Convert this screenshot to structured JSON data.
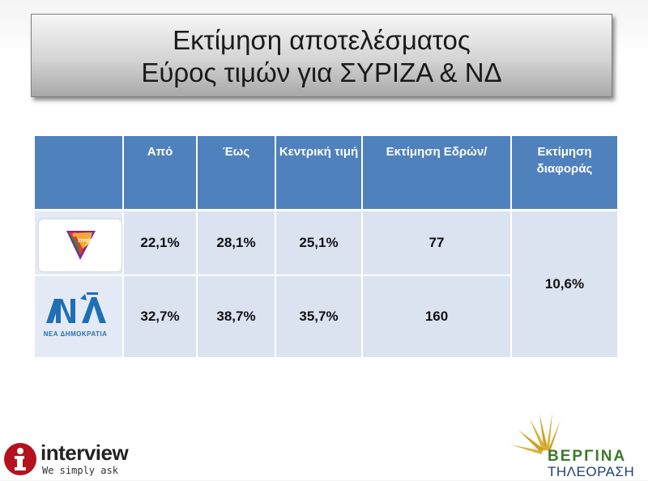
{
  "title": {
    "line1": "Εκτίμηση αποτελέσματος",
    "line2": "Εύρος τιμών για ΣΥΡΙΖΑ & ΝΔ"
  },
  "table": {
    "headers": [
      "",
      "Από",
      "Έως",
      "Κεντρική τιμή",
      "Εκτίμηση Εδρών/",
      "Εκτίμηση διαφοράς"
    ],
    "rows": [
      {
        "party": "ΣΥΡΙΖΑ",
        "logo_label": "ΣΥΡΙΖΑ",
        "from": "22,1%",
        "to": "28,1%",
        "central": "25,1%",
        "seats": "77"
      },
      {
        "party": "ΝΔ",
        "logo_label": "ΝΕΑ ΔΗΜΟΚΡΑΤΙΑ",
        "from": "32,7%",
        "to": "38,7%",
        "central": "35,7%",
        "seats": "160"
      }
    ],
    "difference": "10,6%"
  },
  "branding": {
    "interview_name": "interview",
    "interview_tagline": "We simply ask",
    "vergina_name": "ΒΕΡΓΙΝΑ",
    "vergina_sub": "ΤΗΛΕΟΡΑΣΗ"
  },
  "icons": {
    "syriza_logo": "syriza-logo-icon",
    "nd_logo": "nd-logo-icon",
    "interview_logo": "interview-info-icon",
    "vergina_logo": "vergina-sun-icon"
  },
  "colors": {
    "header_bg": "#4f81bd",
    "cell_bg": "#dbe3f1",
    "header_text": "#ffffff"
  }
}
